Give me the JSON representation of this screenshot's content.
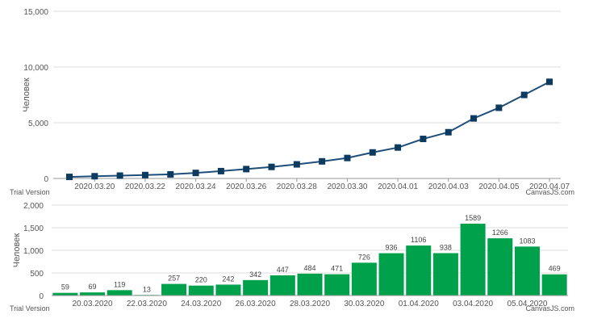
{
  "chart_data": [
    {
      "type": "line",
      "ylabel": "Человек",
      "ylim": [
        0,
        15000
      ],
      "yticks": [
        "0",
        "5,000",
        "10,000",
        "15,000"
      ],
      "ytick_values": [
        0,
        5000,
        10000,
        15000
      ],
      "xtick_labels": [
        "2020.03.20",
        "2020.03.22",
        "2020.03.24",
        "2020.03.26",
        "2020.03.28",
        "2020.03.30",
        "2020.04.01",
        "2020.04.03",
        "2020.04.05",
        "2020.04.07"
      ],
      "x": [
        "2020.03.19",
        "2020.03.20",
        "2020.03.21",
        "2020.03.22",
        "2020.03.23",
        "2020.03.24",
        "2020.03.25",
        "2020.03.26",
        "2020.03.27",
        "2020.03.28",
        "2020.03.29",
        "2020.03.30",
        "2020.03.31",
        "2020.04.01",
        "2020.04.02",
        "2020.04.03",
        "2020.04.04",
        "2020.04.05",
        "2020.04.06",
        "2020.04.07"
      ],
      "values": [
        140,
        199,
        253,
        306,
        367,
        495,
        658,
        840,
        1036,
        1264,
        1534,
        1836,
        2337,
        2777,
        3548,
        4149,
        5389,
        6343,
        7497,
        8672
      ],
      "grid": true,
      "watermark_left": "Trial Version",
      "watermark_right": "CanvasJS.com",
      "color": "#1f4e79"
    },
    {
      "type": "bar",
      "ylabel": "Человек",
      "ylim": [
        0,
        2000
      ],
      "yticks": [
        "0",
        "500",
        "1,000",
        "1,500",
        "2,000"
      ],
      "ytick_values": [
        0,
        500,
        1000,
        1500,
        2000
      ],
      "xtick_labels": [
        "20.03.2020",
        "22.03.2020",
        "24.03.2020",
        "26.03.2020",
        "28.03.2020",
        "30.03.2020",
        "01.04.2020",
        "03.04.2020",
        "05.04.2020"
      ],
      "categories": [
        "19.03.2020",
        "20.03.2020",
        "21.03.2020",
        "22.03.2020",
        "23.03.2020",
        "24.03.2020",
        "25.03.2020",
        "26.03.2020",
        "27.03.2020",
        "28.03.2020",
        "29.03.2020",
        "30.03.2020",
        "31.03.2020",
        "01.04.2020",
        "02.04.2020",
        "03.04.2020",
        "04.04.2020",
        "05.04.2020",
        "06.04.2020"
      ],
      "values": [
        59,
        69,
        119,
        13,
        257,
        220,
        242,
        342,
        447,
        484,
        471,
        726,
        936,
        1106,
        938,
        1589,
        1266,
        1083,
        469
      ],
      "data_labels": [
        "59",
        "69",
        "119",
        "13",
        "257",
        "220",
        "242",
        "342",
        "447",
        "484",
        "471",
        "726",
        "936",
        "1106",
        "938",
        "1589",
        "1266",
        "1083",
        "469"
      ],
      "grid": true,
      "watermark_left": "Trial Version",
      "watermark_right": "CanvasJS.com",
      "color": "#00a14b"
    }
  ]
}
